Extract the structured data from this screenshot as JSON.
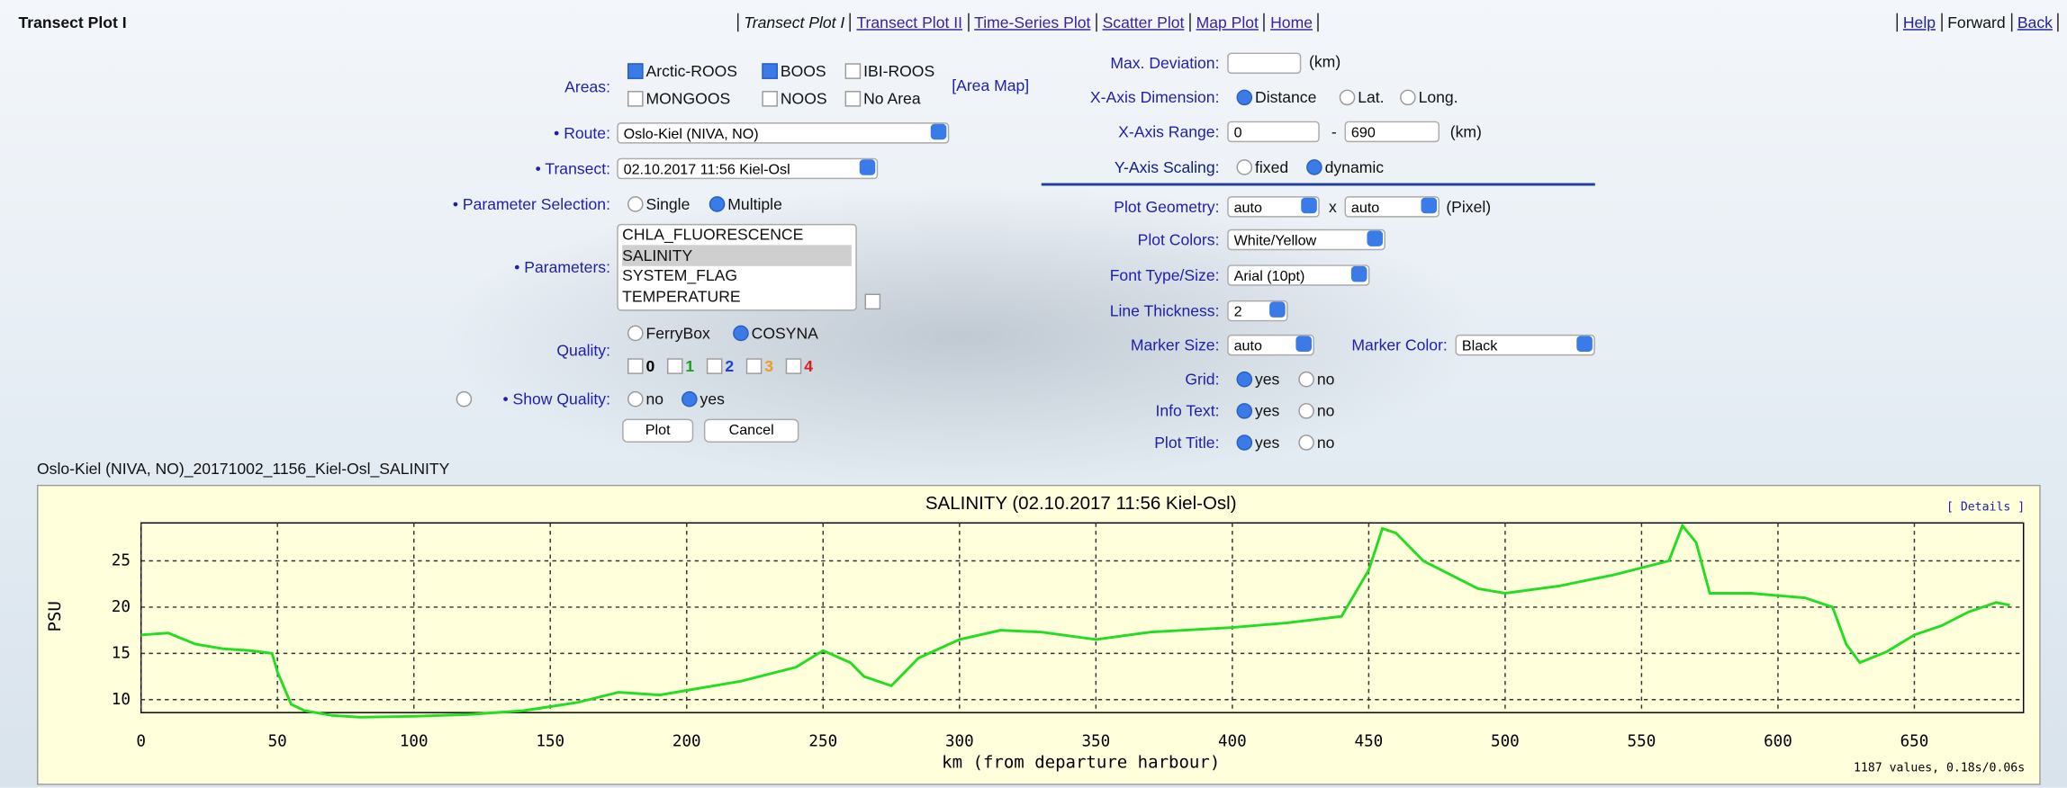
{
  "header": {
    "title": "Transect Plot I",
    "nav": [
      "Transect Plot I",
      "Transect Plot II",
      "Time-Series Plot",
      "Scatter Plot",
      "Map Plot",
      "Home"
    ],
    "links": [
      "Help",
      "Forward",
      "Back"
    ]
  },
  "form": {
    "areas": {
      "label": "Areas:",
      "options": [
        {
          "label": "Arctic-ROOS",
          "checked": true
        },
        {
          "label": "BOOS",
          "checked": true
        },
        {
          "label": "IBI-ROOS",
          "checked": false
        },
        {
          "label": "MONGOOS",
          "checked": false
        },
        {
          "label": "NOOS",
          "checked": false
        },
        {
          "label": "No Area",
          "checked": false
        }
      ],
      "link": "[Area Map]"
    },
    "route": {
      "label": "• Route:",
      "value": "Oslo-Kiel (NIVA, NO)"
    },
    "transect": {
      "label": "• Transect:",
      "value": "02.10.2017 11:56 Kiel-Osl"
    },
    "parameter_selection": {
      "label": "• Parameter Selection:",
      "options": [
        {
          "label": "Single",
          "selected": false
        },
        {
          "label": "Multiple",
          "selected": true
        }
      ]
    },
    "parameters": {
      "label": "• Parameters:",
      "options": [
        {
          "label": "CHLA_FLUORESCENCE",
          "selected": false
        },
        {
          "label": "SALINITY",
          "selected": true
        },
        {
          "label": "SYSTEM_FLAG",
          "selected": false
        },
        {
          "label": "TEMPERATURE",
          "selected": false
        }
      ]
    },
    "quality": {
      "label": "Quality:",
      "options": [
        {
          "label": "FerryBox",
          "selected": false
        },
        {
          "label": "COSYNA",
          "selected": true
        }
      ],
      "flags": [
        {
          "label": "0",
          "color": "#000000"
        },
        {
          "label": "1",
          "color": "#1aa01a"
        },
        {
          "label": "2",
          "color": "#1a3fe0"
        },
        {
          "label": "3",
          "color": "#f09a1a"
        },
        {
          "label": "4",
          "color": "#e01a1a"
        }
      ]
    },
    "show_quality": {
      "label": "• Show Quality:",
      "options": [
        {
          "label": "no",
          "selected": false
        },
        {
          "label": "yes",
          "selected": true
        }
      ]
    },
    "buttons": [
      "Plot",
      "Cancel"
    ],
    "max_deviation": {
      "label": "Max. Deviation:",
      "unit": "(km)"
    },
    "x_axis_dimension": {
      "label": "X-Axis Dimension:",
      "options": [
        {
          "label": "Distance",
          "selected": true
        },
        {
          "label": "Lat.",
          "selected": false
        },
        {
          "label": "Long.",
          "selected": false
        }
      ]
    },
    "x_axis_range": {
      "label": "X-Axis Range:",
      "from": "0",
      "separator": "-",
      "to": "690",
      "unit": "(km)"
    },
    "y_axis_scaling": {
      "label": "Y-Axis Scaling:",
      "options": [
        {
          "label": "fixed",
          "selected": false
        },
        {
          "label": "dynamic",
          "selected": true
        }
      ]
    },
    "plot_geometry": {
      "label": "Plot Geometry:",
      "width": "auto",
      "separator": "x",
      "height": "auto",
      "unit": "(Pixel)"
    },
    "plot_colors": {
      "label": "Plot Colors:",
      "value": "White/Yellow"
    },
    "font": {
      "label": "Font Type/Size:",
      "value": "Arial (10pt)"
    },
    "line_thickness": {
      "label": "Line Thickness:",
      "value": "2"
    },
    "marker_size": {
      "label": "Marker Size:",
      "value": "auto"
    },
    "marker_color": {
      "label": "Marker Color:",
      "value": "Black"
    },
    "grid": {
      "label": "Grid:",
      "options": [
        {
          "label": "yes",
          "selected": true
        },
        {
          "label": "no",
          "selected": false
        }
      ]
    },
    "info_text": {
      "label": "Info Text:",
      "options": [
        {
          "label": "yes",
          "selected": true
        },
        {
          "label": "no",
          "selected": false
        }
      ]
    },
    "plot_title": {
      "label": "Plot Title:",
      "options": [
        {
          "label": "yes",
          "selected": true
        },
        {
          "label": "no",
          "selected": false
        }
      ]
    }
  },
  "plot_filename": "Oslo-Kiel (NIVA, NO)_20171002_1156_Kiel-Osl_SALINITY",
  "chart_data": {
    "type": "line",
    "title": "SALINITY (02.10.2017 11:56 Kiel-Osl)",
    "x_label": "km (from departure harbour)",
    "y_label": "PSU",
    "details_link": "[ Details ]",
    "info_text": "1187 values, 0.18s/0.06s",
    "color": "#22dd22",
    "x": [
      0,
      10,
      20,
      30,
      40,
      48,
      50,
      55,
      60,
      70,
      80,
      100,
      120,
      140,
      160,
      175,
      190,
      200,
      220,
      240,
      250,
      260,
      265,
      275,
      285,
      300,
      315,
      330,
      350,
      370,
      400,
      420,
      440,
      450,
      455,
      460,
      470,
      480,
      490,
      500,
      520,
      540,
      560,
      565,
      570,
      575,
      590,
      610,
      620,
      625,
      630,
      640,
      650,
      660,
      670,
      680,
      685
    ],
    "values": [
      17,
      17.2,
      16,
      15.5,
      15.3,
      15,
      13,
      9.5,
      8.8,
      8.3,
      8.1,
      8.2,
      8.4,
      8.8,
      9.7,
      10.8,
      10.5,
      11,
      12,
      13.5,
      15.3,
      14,
      12.5,
      11.5,
      14.5,
      16.5,
      17.5,
      17.3,
      16.5,
      17.3,
      17.8,
      18.3,
      19,
      24,
      28.5,
      28,
      25,
      23.5,
      22,
      21.5,
      22.3,
      23.5,
      25,
      28.8,
      27,
      21.5,
      21.5,
      21,
      20,
      16,
      14,
      15.2,
      17,
      18,
      19.5,
      20.5,
      20.2
    ],
    "xlim": [
      0,
      690
    ],
    "ylim": [
      8.6,
      29.1
    ],
    "xticks": [
      0,
      50,
      100,
      150,
      200,
      250,
      300,
      350,
      400,
      450,
      500,
      550,
      600,
      650
    ],
    "yticks": [
      10,
      15,
      20,
      25
    ],
    "grid": true
  }
}
